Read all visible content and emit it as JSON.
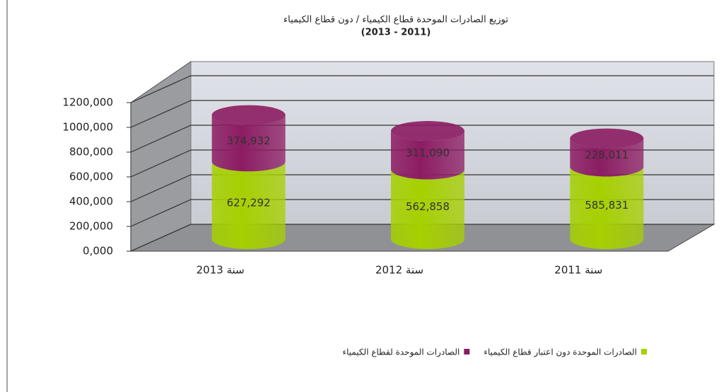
{
  "chart_data": {
    "type": "bar3d-stacked",
    "title": "توزيع الصادرات الموحدة قطاع الكيمياء / دون قطاع الكيمياء",
    "subtitle": "(2013 - 2011)",
    "categories": [
      "سنة 2013",
      "سنة 2012",
      "سنة 2011"
    ],
    "series": [
      {
        "name": "الصادرات الموحدة دون اعتبار قطاع الكيمياء",
        "color": "#a6d000",
        "values": [
          627292,
          562858,
          585831
        ],
        "value_labels": [
          "627,292",
          "562,858",
          "585,831"
        ]
      },
      {
        "name": "الصادرات الموحدة لقطاع الكيمياء",
        "color": "#8c1c62",
        "values": [
          374932,
          311090,
          228011
        ],
        "value_labels": [
          "374,932",
          "311,090",
          "228,011"
        ]
      }
    ],
    "ylim": [
      0,
      1200000
    ],
    "yticks": [
      {
        "value": 0,
        "label": "0,000"
      },
      {
        "value": 200000,
        "label": "200,000"
      },
      {
        "value": 400000,
        "label": "400,000"
      },
      {
        "value": 600000,
        "label": "600,000"
      },
      {
        "value": 800000,
        "label": "800,000"
      },
      {
        "value": 1000000,
        "label": "1000,000"
      },
      {
        "value": 1200000,
        "label": "1200,000"
      }
    ],
    "grid": true
  }
}
